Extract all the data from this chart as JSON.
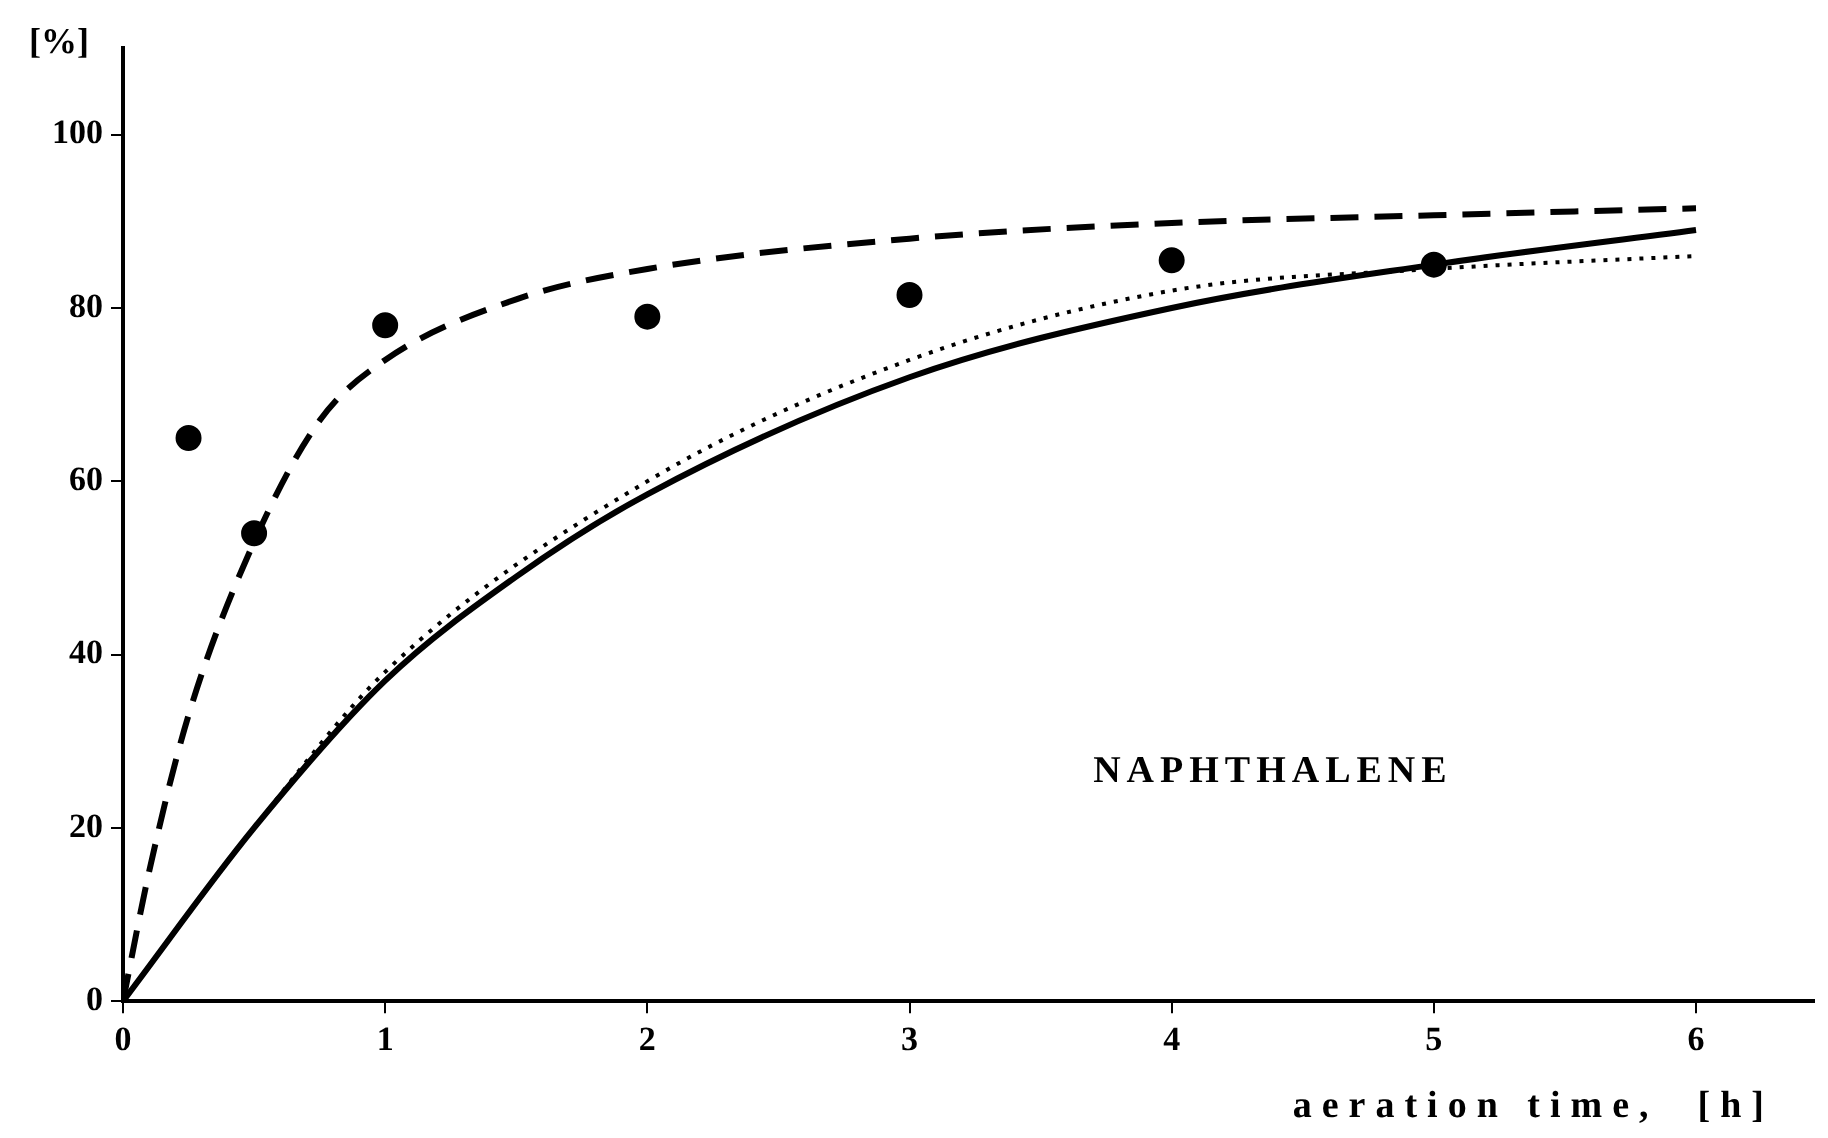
{
  "chart_data": {
    "type": "line",
    "xlabel": "aeration time,  [h]",
    "ylabel": "[%]",
    "xlim": [
      0,
      6.45
    ],
    "xticks": [
      0,
      1,
      2,
      3,
      4,
      5,
      6
    ],
    "ylim": [
      0,
      110
    ],
    "yticks": [
      0,
      20,
      40,
      60,
      80,
      100
    ],
    "grid": false,
    "legend": false,
    "annotations": [
      "NAPHTHALENE"
    ],
    "series": [
      {
        "type": "scatter",
        "marker": "circle",
        "color": "#000000",
        "x": [
          0.25,
          0.5,
          1,
          2,
          3,
          4,
          5
        ],
        "values": [
          65,
          54,
          78,
          79,
          81.5,
          85.5,
          85
        ]
      },
      {
        "type": "line",
        "line_style": "dashed",
        "marker": "none",
        "color": "#000000",
        "x": [
          0,
          0.1,
          0.25,
          0.5,
          0.75,
          1,
          1.5,
          2,
          3,
          4,
          5,
          6
        ],
        "values": [
          0,
          15,
          33,
          53,
          67,
          74,
          81,
          84.5,
          88,
          89.8,
          90.7,
          91.5
        ]
      },
      {
        "type": "line",
        "line_style": "solid",
        "marker": "none",
        "color": "#000000",
        "x": [
          0,
          0.5,
          1,
          1.5,
          2,
          3,
          4,
          5,
          6
        ],
        "values": [
          0,
          20,
          37,
          49,
          58.5,
          72,
          80,
          85,
          89
        ]
      },
      {
        "type": "line",
        "line_style": "dotted",
        "marker": "none",
        "color": "#000000",
        "x": [
          0,
          0.5,
          1,
          2,
          3,
          4,
          5,
          6
        ],
        "values": [
          0,
          20,
          38,
          60,
          74,
          82,
          84.5,
          86
        ]
      }
    ]
  }
}
